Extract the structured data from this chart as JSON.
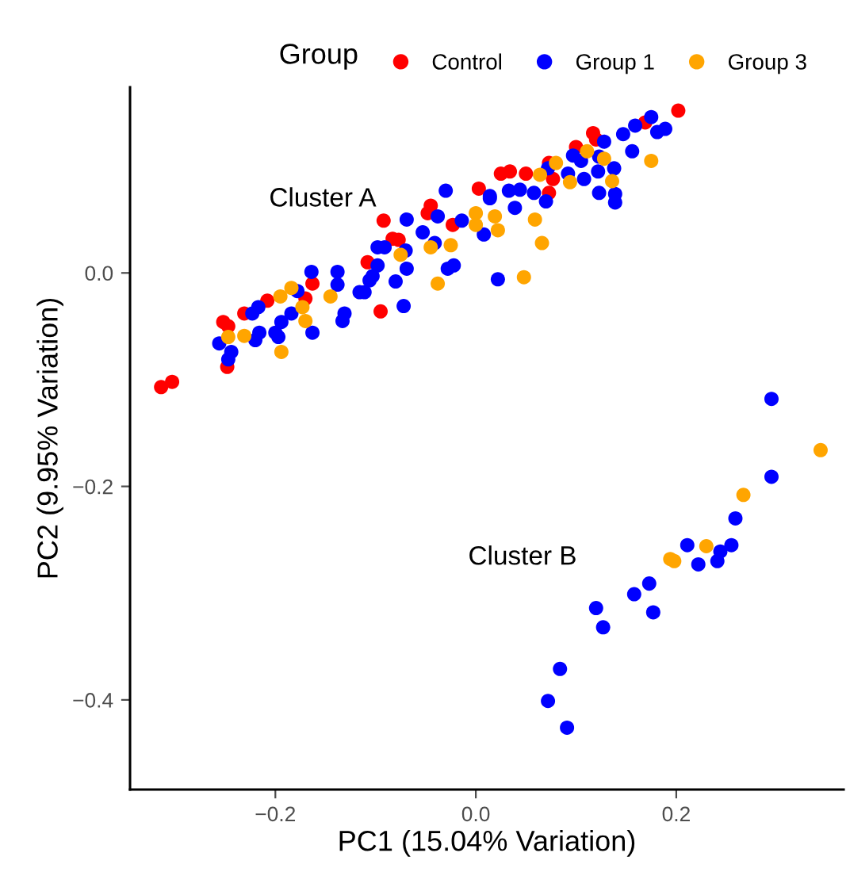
{
  "chart_data": {
    "type": "scatter",
    "xlabel": "PC1 (15.04% Variation)",
    "ylabel": "PC2 (9.95% Variation)",
    "legend_title": "Group",
    "legend": "top",
    "marker": "circle",
    "grid": false,
    "xlim": [
      -0.345,
      0.367
    ],
    "ylim": [
      -0.484,
      0.174
    ],
    "xticks": [
      {
        "value": -0.2,
        "label": "−0.2"
      },
      {
        "value": 0.0,
        "label": "0.0"
      },
      0.2
    ],
    "yticks": [
      {
        "value": -0.4,
        "label": "−0.4"
      },
      {
        "value": -0.2,
        "label": "−0.2"
      },
      {
        "value": 0.0,
        "label": "0.0"
      }
    ],
    "annotations": [
      "Cluster A",
      "Cluster B"
    ],
    "series": [
      {
        "name": "Control",
        "color": "#ff0000",
        "x": [
          -0.314,
          -0.303,
          -0.252,
          -0.247,
          -0.248,
          -0.231,
          -0.208,
          -0.17,
          -0.163,
          -0.095,
          -0.108,
          -0.092,
          -0.083,
          -0.077,
          -0.045,
          -0.048,
          -0.023,
          0.003,
          0.025,
          0.034,
          0.05,
          0.073,
          0.077,
          0.073,
          0.1,
          0.117,
          0.12,
          0.169,
          0.202
        ],
        "values": [
          -0.107,
          -0.102,
          -0.046,
          -0.05,
          -0.088,
          -0.038,
          -0.026,
          -0.024,
          -0.01,
          -0.036,
          0.01,
          0.049,
          0.032,
          0.031,
          0.063,
          0.056,
          0.045,
          0.079,
          0.093,
          0.095,
          0.093,
          0.103,
          0.088,
          0.075,
          0.118,
          0.131,
          0.125,
          0.141,
          0.152
        ]
      },
      {
        "name": "Group 1",
        "color": "#0000ff",
        "x": [
          -0.256,
          -0.244,
          -0.247,
          -0.223,
          -0.217,
          -0.216,
          -0.22,
          -0.2,
          -0.194,
          -0.197,
          -0.184,
          -0.178,
          -0.163,
          -0.164,
          -0.138,
          -0.138,
          -0.131,
          -0.133,
          -0.116,
          -0.111,
          -0.106,
          -0.103,
          -0.098,
          -0.098,
          -0.091,
          -0.072,
          -0.08,
          -0.069,
          -0.07,
          -0.069,
          -0.053,
          -0.041,
          -0.038,
          -0.03,
          -0.022,
          -0.028,
          -0.014,
          0.008,
          0.014,
          0.022,
          0.014,
          0.033,
          0.044,
          0.039,
          0.058,
          0.07,
          0.072,
          0.092,
          0.097,
          0.105,
          0.108,
          0.123,
          0.122,
          0.128,
          0.138,
          0.123,
          0.139,
          0.139,
          0.147,
          0.156,
          0.159,
          0.175,
          0.181,
          0.189,
          0.295,
          0.295,
          0.259,
          0.211,
          0.255,
          0.244,
          0.241,
          0.222,
          0.173,
          0.158,
          0.177,
          0.12,
          0.127,
          0.084,
          0.072,
          0.091
        ],
        "values": [
          -0.066,
          -0.074,
          -0.081,
          -0.038,
          -0.032,
          -0.056,
          -0.063,
          -0.056,
          -0.046,
          -0.06,
          -0.038,
          -0.017,
          -0.056,
          0.001,
          0.001,
          -0.011,
          -0.038,
          -0.045,
          -0.018,
          -0.018,
          -0.007,
          -0.003,
          0.007,
          0.024,
          0.024,
          -0.031,
          -0.008,
          0.004,
          0.021,
          0.05,
          0.038,
          0.028,
          0.053,
          0.077,
          0.007,
          0.004,
          0.049,
          0.036,
          0.072,
          -0.006,
          0.07,
          0.077,
          0.078,
          0.061,
          0.075,
          0.067,
          0.098,
          0.093,
          0.11,
          0.105,
          0.088,
          0.109,
          0.095,
          0.123,
          0.098,
          0.075,
          0.074,
          0.066,
          0.13,
          0.114,
          0.138,
          0.146,
          0.132,
          0.135,
          -0.118,
          -0.191,
          -0.23,
          -0.255,
          -0.255,
          -0.261,
          -0.27,
          -0.273,
          -0.291,
          -0.301,
          -0.318,
          -0.314,
          -0.332,
          -0.371,
          -0.401,
          -0.426
        ]
      },
      {
        "name": "Group 3",
        "color": "#ffa500",
        "x": [
          -0.247,
          -0.231,
          -0.194,
          -0.195,
          -0.184,
          -0.173,
          -0.17,
          -0.145,
          -0.075,
          -0.045,
          -0.025,
          -0.038,
          0.0,
          0.0,
          0.019,
          0.022,
          0.059,
          0.066,
          0.048,
          0.08,
          0.094,
          0.111,
          0.128,
          0.136,
          0.175,
          0.064,
          0.344,
          0.267,
          0.23,
          0.194,
          0.198
        ],
        "values": [
          -0.06,
          -0.059,
          -0.074,
          -0.022,
          -0.014,
          -0.032,
          -0.045,
          -0.022,
          0.017,
          0.024,
          0.026,
          -0.01,
          0.056,
          0.045,
          0.053,
          0.04,
          0.05,
          0.028,
          -0.004,
          0.103,
          0.085,
          0.114,
          0.107,
          0.086,
          0.105,
          0.092,
          -0.166,
          -0.208,
          -0.256,
          -0.268,
          -0.27
        ]
      }
    ]
  }
}
